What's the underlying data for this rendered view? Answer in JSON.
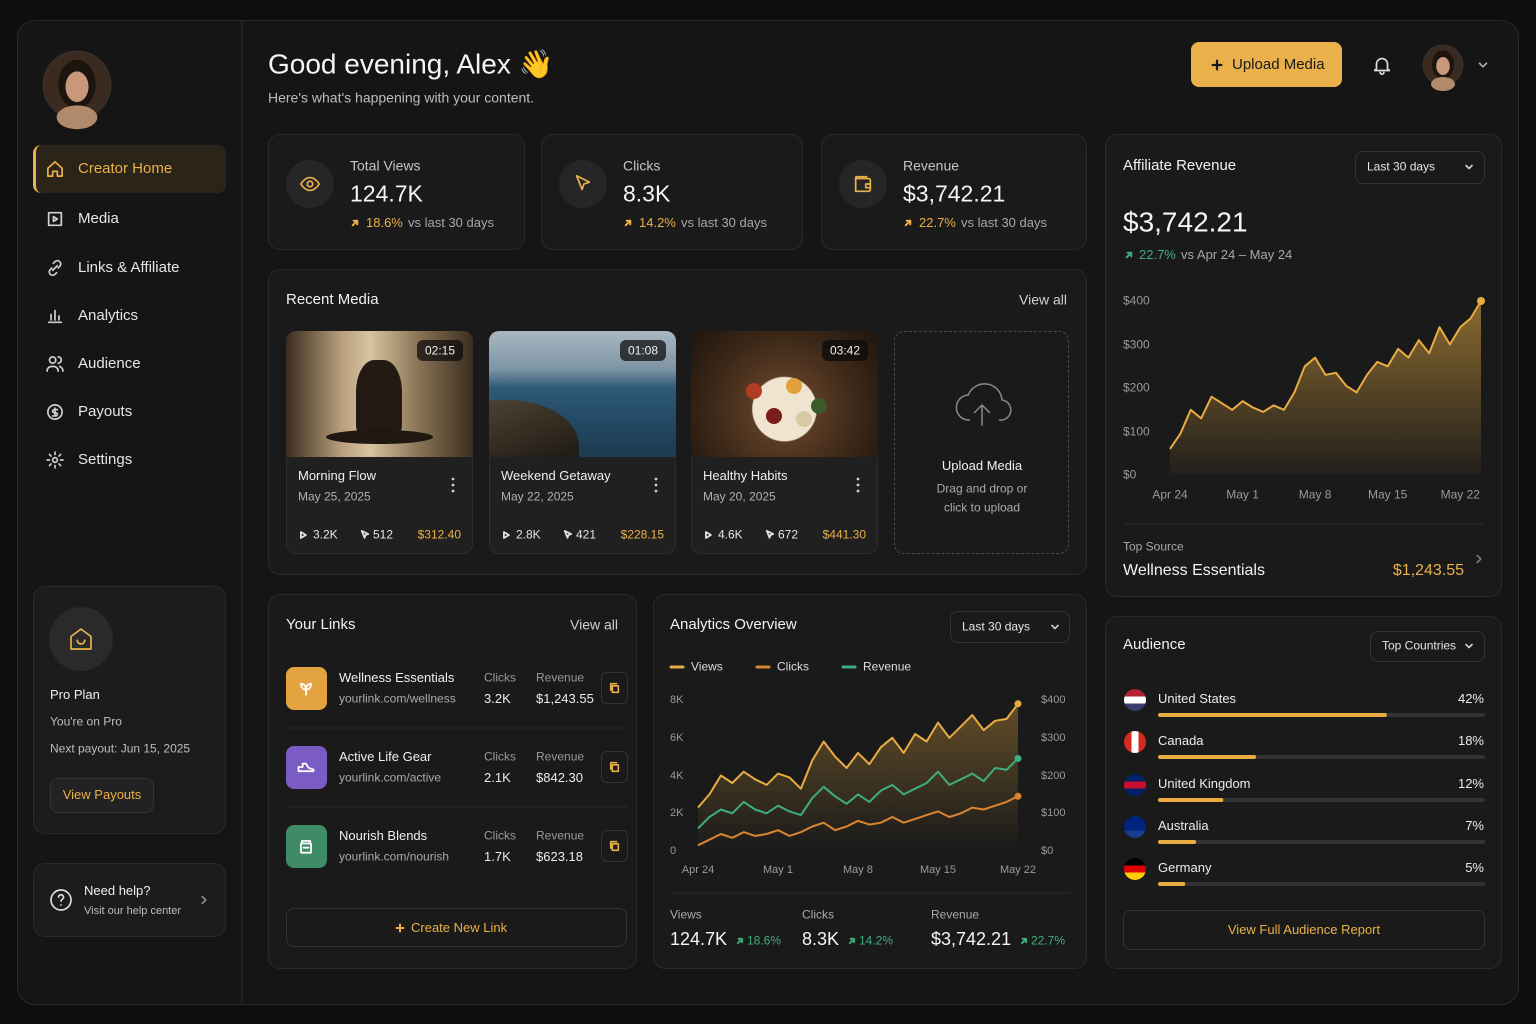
{
  "sidebar": {
    "nav": [
      "Creator Home",
      "Media",
      "Links & Affiliate",
      "Analytics",
      "Audience",
      "Payouts",
      "Settings"
    ],
    "active": 0,
    "plan": {
      "title": "Pro Plan",
      "status": "You're on Pro",
      "payout": "Next payout: Jun 15, 2025",
      "button": "View Payouts"
    },
    "help": {
      "title": "Need help?",
      "subtitle": "Visit our help center"
    }
  },
  "header": {
    "greeting": "Good evening, Alex 👋",
    "subtitle": "Here's what's happening with your content.",
    "upload": "Upload Media"
  },
  "stats": [
    {
      "label": "Total Views",
      "value": "124.7K",
      "change": "18.6%",
      "compare": "vs last 30 days"
    },
    {
      "label": "Clicks",
      "value": "8.3K",
      "change": "14.2%",
      "compare": "vs last 30 days"
    },
    {
      "label": "Revenue",
      "value": "$3,742.21",
      "change": "22.7%",
      "compare": "vs last 30 days"
    }
  ],
  "recent_media": {
    "title": "Recent Media",
    "view_all": "View all",
    "items": [
      {
        "duration": "02:15",
        "title": "Morning Flow",
        "date": "May 25, 2025",
        "views": "3.2K",
        "clicks": "512",
        "revenue": "$312.40"
      },
      {
        "duration": "01:08",
        "title": "Weekend Getaway",
        "date": "May 22, 2025",
        "views": "2.8K",
        "clicks": "421",
        "revenue": "$228.15"
      },
      {
        "duration": "03:42",
        "title": "Healthy Habits",
        "date": "May 20, 2025",
        "views": "4.6K",
        "clicks": "672",
        "revenue": "$441.30"
      }
    ],
    "upload": {
      "title": "Upload Media",
      "lines": [
        "Drag and drop or",
        "click to upload"
      ]
    }
  },
  "links": {
    "title": "Your Links",
    "view_all": "View all",
    "clicks_label": "Clicks",
    "revenue_label": "Revenue",
    "items": [
      {
        "name": "Wellness Essentials",
        "url": "yourlink.com/wellness",
        "clicks": "3.2K",
        "revenue": "$1,243.55"
      },
      {
        "name": "Active Life Gear",
        "url": "yourlink.com/active",
        "clicks": "2.1K",
        "revenue": "$842.30"
      },
      {
        "name": "Nourish Blends",
        "url": "yourlink.com/nourish",
        "clicks": "1.7K",
        "revenue": "$623.18"
      }
    ],
    "create": "Create New Link"
  },
  "analytics": {
    "title": "Analytics Overview",
    "range": "Last 30 days",
    "chart": {
      "type": "line",
      "categories": [
        "Apr 24",
        null,
        null,
        null,
        null,
        null,
        null,
        "May 1",
        null,
        null,
        null,
        null,
        null,
        null,
        "May 8",
        null,
        null,
        null,
        null,
        null,
        null,
        "May 15",
        null,
        null,
        null,
        null,
        null,
        null,
        "May 22"
      ],
      "series": [
        {
          "name": "Views",
          "color": "#e8ac42",
          "values": [
            2300,
            3000,
            4000,
            3600,
            4200,
            3800,
            3500,
            4100,
            3900,
            3300,
            4800,
            5800,
            5000,
            4400,
            5200,
            4600,
            5500,
            6000,
            5200,
            6200,
            5800,
            6800,
            6000,
            6600,
            7200,
            6400,
            6900,
            7000,
            7800
          ]
        },
        {
          "name": "Clicks",
          "color": "#d9862f",
          "values": [
            300,
            600,
            900,
            700,
            1000,
            800,
            900,
            1100,
            800,
            1000,
            1300,
            1500,
            1100,
            1300,
            1600,
            1400,
            1500,
            1800,
            1500,
            1700,
            1900,
            2100,
            1800,
            2000,
            2300,
            2200,
            2400,
            2600,
            2900
          ]
        },
        {
          "name": "Revenue",
          "color": "#3fae7e",
          "axis": "y2",
          "values": [
            60,
            90,
            110,
            100,
            130,
            110,
            100,
            120,
            105,
            95,
            140,
            170,
            145,
            125,
            150,
            130,
            160,
            175,
            150,
            165,
            180,
            210,
            175,
            190,
            205,
            185,
            220,
            215,
            245
          ]
        }
      ],
      "ylim": [
        0,
        8000
      ],
      "yticks": [
        0,
        {
          "value": 2000,
          "label": "2K"
        },
        {
          "value": 4000,
          "label": "4K"
        },
        {
          "value": 6000,
          "label": "6K"
        },
        {
          "value": 8000,
          "label": "8K"
        }
      ],
      "y2lim": [
        0,
        400
      ],
      "y2ticks": [
        {
          "value": 0,
          "label": "$0"
        },
        {
          "value": 100,
          "label": "$100"
        },
        {
          "value": 200,
          "label": "$200"
        },
        {
          "value": 300,
          "label": "$300"
        },
        {
          "value": 400,
          "label": "$400"
        }
      ]
    },
    "summary": [
      {
        "label": "Views",
        "value": "124.7K",
        "change": "18.6%"
      },
      {
        "label": "Clicks",
        "value": "8.3K",
        "change": "14.2%"
      },
      {
        "label": "Revenue",
        "value": "$3,742.21",
        "change": "22.7%"
      }
    ]
  },
  "affiliate": {
    "title": "Affiliate Revenue",
    "range": "Last 30 days",
    "value": "$3,742.21",
    "change": "22.7%",
    "compare": "vs Apr 24 – May 24",
    "chart": {
      "type": "line",
      "color": "#e8ac42",
      "categories": [
        "Apr 24",
        null,
        null,
        null,
        null,
        null,
        null,
        "May 1",
        null,
        null,
        null,
        null,
        null,
        null,
        "May 8",
        null,
        null,
        null,
        null,
        null,
        null,
        "May 15",
        null,
        null,
        null,
        null,
        null,
        null,
        "May 22",
        null,
        null
      ],
      "values": [
        60,
        95,
        150,
        130,
        180,
        165,
        150,
        170,
        155,
        145,
        160,
        150,
        190,
        250,
        270,
        230,
        235,
        205,
        190,
        230,
        260,
        250,
        290,
        270,
        310,
        280,
        340,
        300,
        340,
        360,
        400
      ],
      "ylim": [
        0,
        400
      ],
      "yticks": [
        {
          "value": 0,
          "label": "$0"
        },
        {
          "value": 100,
          "label": "$100"
        },
        {
          "value": 200,
          "label": "$200"
        },
        {
          "value": 300,
          "label": "$300"
        },
        {
          "value": 400,
          "label": "$400"
        }
      ]
    },
    "top_source": {
      "label": "Top Source",
      "name": "Wellness Essentials",
      "value": "$1,243.55"
    }
  },
  "audience": {
    "title": "Audience",
    "filter": "Top Countries",
    "chart": {
      "type": "bar",
      "color": "#e8ac42",
      "categories": [
        "United States",
        "Canada",
        "United Kingdom",
        "Australia",
        "Germany"
      ],
      "values": [
        42,
        18,
        12,
        7,
        5
      ],
      "value_labels": [
        "42%",
        "18%",
        "12%",
        "7%",
        "5%"
      ],
      "xlim": [
        0,
        60
      ]
    },
    "button": "View Full Audience Report"
  }
}
